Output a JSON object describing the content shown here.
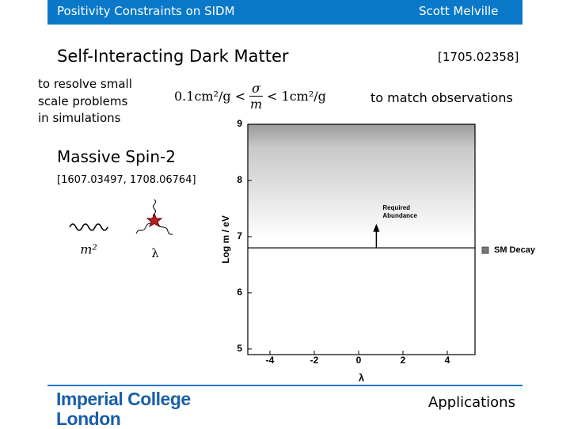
{
  "header": {
    "title": "Positivity Constraints on SIDM",
    "author": "Scott Melville"
  },
  "title": "Self-Interacting Dark Matter",
  "reference": "[1705.02358]",
  "left_text": [
    "to resolve small",
    "scale problems",
    "in simulations"
  ],
  "formula": {
    "left": "0.1cm²/g <",
    "numerator": "σ",
    "denominator": "m",
    "right": "< 1cm²/g"
  },
  "right_text": "to match observations",
  "subtitle": "Massive Spin-2",
  "sub_reference": "[1607.03497, 1708.06764]",
  "diagram": {
    "propagator_label": "m²",
    "vertex_label": "λ"
  },
  "chart_data": {
    "type": "line",
    "x_label": "λ",
    "y_label": "Log m / eV",
    "xlim": [
      -5,
      5.25
    ],
    "ylim": [
      4.9,
      9
    ],
    "xticks": [
      -4,
      -2,
      0,
      2,
      4
    ],
    "yticks": [
      5,
      6,
      7,
      8,
      9
    ],
    "series": [
      {
        "name": "SM Decay",
        "color": "#000000",
        "x": [
          -5,
          5.25
        ],
        "values": [
          6.8,
          6.8
        ]
      }
    ],
    "annotations": [
      {
        "text": [
          "Required",
          "Abundance"
        ],
        "x": 0.8,
        "y": 7.2
      }
    ],
    "legend": "right"
  },
  "footer": {
    "logo": [
      "Imperial College",
      "London"
    ],
    "section": "Applications"
  }
}
